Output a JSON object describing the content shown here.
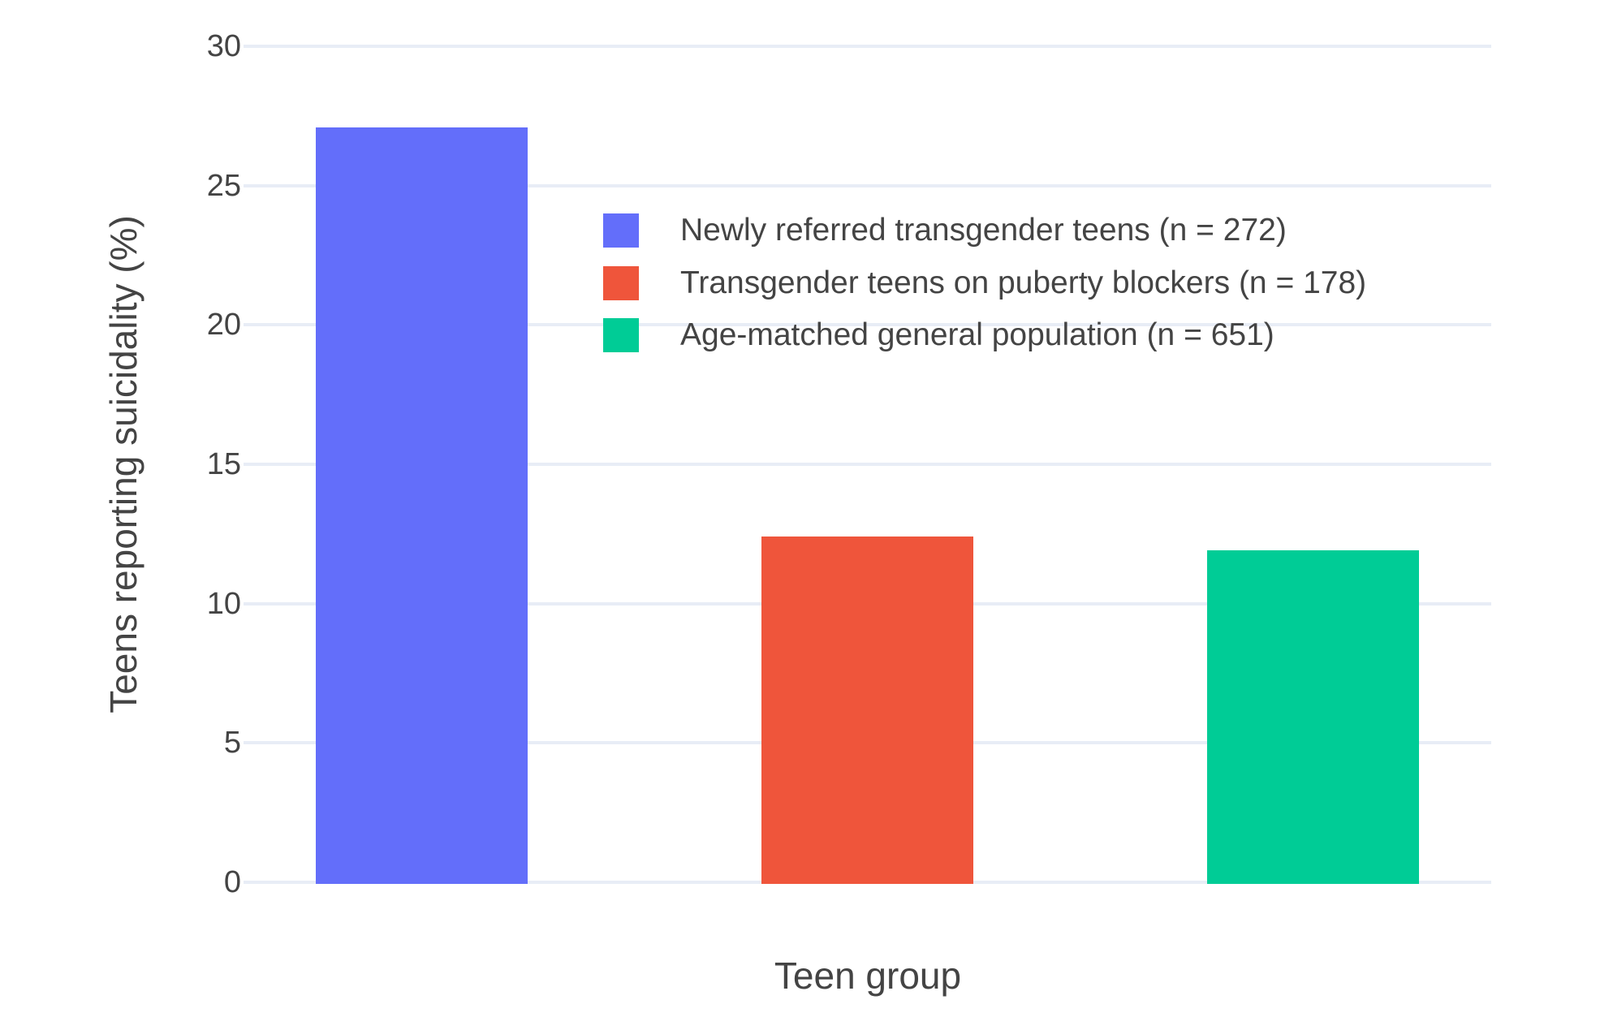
{
  "chart_data": {
    "type": "bar",
    "title": "",
    "xlabel": "Teen group",
    "ylabel": "Teens reporting suicidality (%)",
    "categories": [
      "Newly referred transgender teens (n = 272)",
      "Transgender teens on puberty blockers (n = 178)",
      "Age-matched general population (n = 651)"
    ],
    "values": [
      27.1,
      12.4,
      11.9
    ],
    "colors": [
      "#636EFA",
      "#EF553B",
      "#00CC96"
    ],
    "yticks": [
      0,
      5,
      10,
      15,
      20,
      25,
      30
    ],
    "ylim": [
      0,
      30
    ],
    "grid": true,
    "gridline_color": "#E8EDF6",
    "background_color": "#FFFFFF",
    "text_color": "#444444",
    "x_tick_labels_shown": false,
    "legend": {
      "position": "inside top-center",
      "entries": [
        "Newly referred transgender teens (n = 272)",
        "Transgender teens on puberty blockers (n = 178)",
        "Age-matched general population (n = 651)"
      ]
    }
  }
}
